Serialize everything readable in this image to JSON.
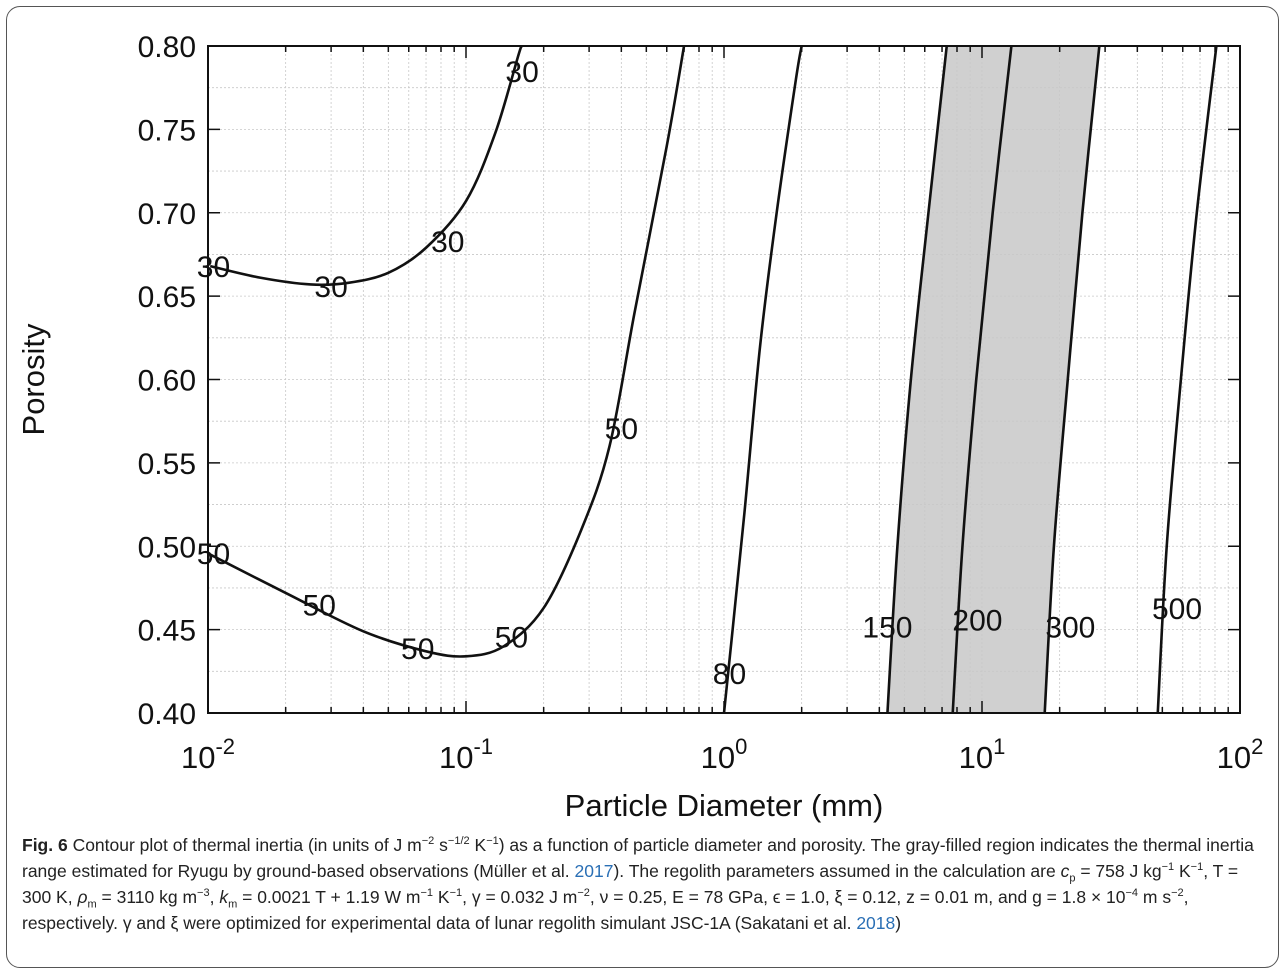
{
  "chart_data": {
    "type": "contour",
    "xscale": "log",
    "xlim": [
      0.01,
      100
    ],
    "ylim": [
      0.4,
      0.8
    ],
    "xlabel": "Particle Diameter (mm)",
    "ylabel": "Porosity",
    "x_ticks": [
      {
        "base": "10",
        "exp": "-2"
      },
      {
        "base": "10",
        "exp": "-1"
      },
      {
        "base": "10",
        "exp": "0"
      },
      {
        "base": "10",
        "exp": "1"
      },
      {
        "base": "10",
        "exp": "2"
      }
    ],
    "y_ticks": [
      "0.40",
      "0.45",
      "0.50",
      "0.55",
      "0.60",
      "0.65",
      "0.70",
      "0.75",
      "0.80"
    ],
    "grid": true,
    "shaded_region": {
      "color": "#d0d0d0",
      "left_boundary": [
        [
          4.3,
          0.4
        ],
        [
          4.7,
          0.5
        ],
        [
          5.3,
          0.6
        ],
        [
          6.2,
          0.7
        ],
        [
          7.3,
          0.8
        ]
      ],
      "right_boundary": [
        [
          17.5,
          0.4
        ],
        [
          19.0,
          0.5
        ],
        [
          21.5,
          0.6
        ],
        [
          24.5,
          0.7
        ],
        [
          28.5,
          0.8
        ]
      ]
    },
    "contours": [
      {
        "level": "30",
        "points": [
          [
            0.0102,
            0.668
          ],
          [
            0.016,
            0.661
          ],
          [
            0.025,
            0.657
          ],
          [
            0.035,
            0.658
          ],
          [
            0.05,
            0.664
          ],
          [
            0.07,
            0.679
          ],
          [
            0.1,
            0.707
          ],
          [
            0.13,
            0.748
          ],
          [
            0.16,
            0.795
          ],
          [
            0.165,
            0.8
          ]
        ]
      },
      {
        "level": "50",
        "points": [
          [
            0.0102,
            0.495
          ],
          [
            0.02,
            0.472
          ],
          [
            0.04,
            0.449
          ],
          [
            0.07,
            0.437
          ],
          [
            0.1,
            0.434
          ],
          [
            0.14,
            0.44
          ],
          [
            0.2,
            0.463
          ],
          [
            0.28,
            0.51
          ],
          [
            0.36,
            0.56
          ],
          [
            0.45,
            0.64
          ],
          [
            0.6,
            0.74
          ],
          [
            0.7,
            0.8
          ]
        ]
      },
      {
        "level": "80",
        "points": [
          [
            1.0,
            0.4
          ],
          [
            1.08,
            0.45
          ],
          [
            1.2,
            0.52
          ],
          [
            1.38,
            0.62
          ],
          [
            1.6,
            0.7
          ],
          [
            1.9,
            0.78
          ],
          [
            2.0,
            0.8
          ]
        ]
      },
      {
        "level": "150",
        "points": [
          [
            4.3,
            0.4
          ],
          [
            4.7,
            0.5
          ],
          [
            5.3,
            0.6
          ],
          [
            6.2,
            0.7
          ],
          [
            7.3,
            0.8
          ]
        ]
      },
      {
        "level": "200",
        "points": [
          [
            7.7,
            0.4
          ],
          [
            8.4,
            0.5
          ],
          [
            9.5,
            0.6
          ],
          [
            11.0,
            0.7
          ],
          [
            13.0,
            0.8
          ]
        ]
      },
      {
        "level": "300",
        "points": [
          [
            17.5,
            0.4
          ],
          [
            19.0,
            0.5
          ],
          [
            21.5,
            0.6
          ],
          [
            24.5,
            0.7
          ],
          [
            28.5,
            0.8
          ]
        ]
      },
      {
        "level": "500",
        "points": [
          [
            48.0,
            0.4
          ],
          [
            52.0,
            0.5
          ],
          [
            59.0,
            0.6
          ],
          [
            68.0,
            0.7
          ],
          [
            81.0,
            0.8
          ]
        ]
      }
    ],
    "contour_labels": [
      {
        "text": "30",
        "x": 0.0105,
        "y": 0.668
      },
      {
        "text": "30",
        "x": 0.03,
        "y": 0.656
      },
      {
        "text": "30",
        "x": 0.085,
        "y": 0.683
      },
      {
        "text": "30",
        "x": 0.165,
        "y": 0.785
      },
      {
        "text": "50",
        "x": 0.0105,
        "y": 0.496
      },
      {
        "text": "50",
        "x": 0.027,
        "y": 0.465
      },
      {
        "text": "50",
        "x": 0.065,
        "y": 0.439
      },
      {
        "text": "50",
        "x": 0.15,
        "y": 0.446
      },
      {
        "text": "50",
        "x": 0.4,
        "y": 0.571
      },
      {
        "text": "80",
        "x": 1.05,
        "y": 0.424
      },
      {
        "text": "150",
        "x": 4.3,
        "y": 0.452
      },
      {
        "text": "200",
        "x": 9.6,
        "y": 0.456
      },
      {
        "text": "300",
        "x": 22.0,
        "y": 0.452
      },
      {
        "text": "500",
        "x": 57.0,
        "y": 0.463
      }
    ]
  },
  "caption": {
    "fig_label": "Fig. 6",
    "p1": " Contour plot of thermal inertia (in units of J m",
    "p2": " s",
    "p3": " K",
    "p4": ") as a function of particle diameter and porosity. The gray-filled region indicates the thermal inertia range estimated for Ryugu by ground-based observations (Müller et al. ",
    "cite1": "2017",
    "p5": "). The regolith parameters assumed in the calculation are ",
    "params1": " = 758 J kg",
    "params2": " K",
    "params3": ", T = 300 K, ",
    "params4": " = 3110 kg m",
    "params5": ", ",
    "params6": " = 0.0021 T + 1.19 W m",
    "params7": " K",
    "params8": ", γ = 0.032 J m",
    "params9": ", ν = 0.25, E = 78 GPa, ϵ = 1.0, ξ = 0.12, z = 0.01 m, and g = 1.8 × 10",
    "params10": " m s",
    "params11": ", respectively. γ and ξ were optimized for experimental data of lunar regolith simulant JSC-1A (Sakatani et al. ",
    "cite2": "2018",
    "p6": ")"
  }
}
